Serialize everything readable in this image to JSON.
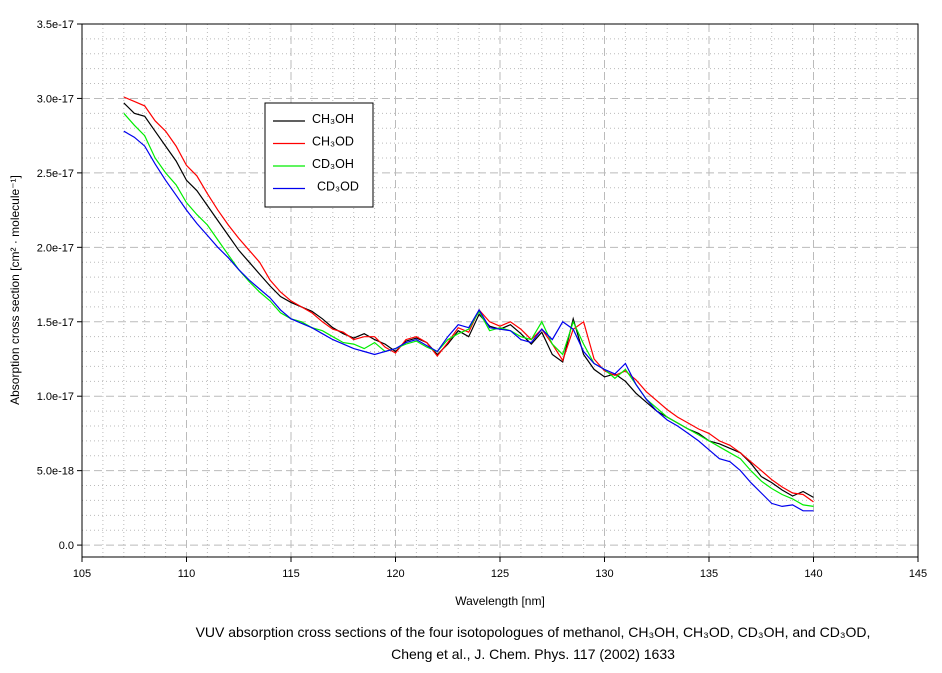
{
  "chart_data": {
    "type": "line",
    "title": "",
    "xlabel": "Wavelength [nm]",
    "ylabel": "Absorption cross section [cm² · molecule⁻¹]",
    "xlim": [
      105,
      145
    ],
    "ylim": [
      -8e-19,
      3.5e-17
    ],
    "xticks": [
      105,
      110,
      115,
      120,
      125,
      130,
      135,
      140,
      145
    ],
    "xtick_labels": [
      "105",
      "110",
      "115",
      "120",
      "125",
      "130",
      "135",
      "140",
      "145"
    ],
    "yticks": [
      0,
      5e-18,
      1e-17,
      1.5e-17,
      2e-17,
      2.5e-17,
      3e-17,
      3.5e-17
    ],
    "ytick_labels": [
      "0.0",
      "5.0e-18",
      "1.0e-17",
      "1.5e-17",
      "2.0e-17",
      "2.5e-17",
      "3.0e-17",
      "3.5e-17"
    ],
    "grid": {
      "major": "dashed",
      "minor": "dotted",
      "on": true
    },
    "legend_position": "upper-left",
    "x": [
      107,
      107.5,
      108,
      108.5,
      109,
      109.5,
      110,
      110.5,
      111,
      111.5,
      112,
      112.5,
      113,
      113.5,
      114,
      114.5,
      115,
      115.5,
      116,
      116.5,
      117,
      117.5,
      118,
      118.5,
      119,
      119.5,
      120,
      120.5,
      121,
      121.5,
      122,
      122.5,
      123,
      123.5,
      124,
      124.5,
      125,
      125.5,
      126,
      126.5,
      127,
      127.5,
      128,
      128.5,
      129,
      129.5,
      130,
      130.5,
      131,
      131.5,
      132,
      132.5,
      133,
      133.5,
      134,
      134.5,
      135,
      135.5,
      136,
      136.5,
      137,
      137.5,
      138,
      138.5,
      139,
      139.5,
      140
    ],
    "series": [
      {
        "name": "CH₃OH",
        "color": "#000000",
        "values": [
          2.97e-17,
          2.9e-17,
          2.88e-17,
          2.78e-17,
          2.68e-17,
          2.58e-17,
          2.45e-17,
          2.38e-17,
          2.28e-17,
          2.18e-17,
          2.08e-17,
          1.98e-17,
          1.9e-17,
          1.82e-17,
          1.74e-17,
          1.67e-17,
          1.63e-17,
          1.6e-17,
          1.57e-17,
          1.52e-17,
          1.46e-17,
          1.42e-17,
          1.39e-17,
          1.42e-17,
          1.38e-17,
          1.35e-17,
          1.3e-17,
          1.37e-17,
          1.39e-17,
          1.36e-17,
          1.28e-17,
          1.35e-17,
          1.44e-17,
          1.4e-17,
          1.55e-17,
          1.47e-17,
          1.45e-17,
          1.48e-17,
          1.42e-17,
          1.35e-17,
          1.43e-17,
          1.28e-17,
          1.23e-17,
          1.52e-17,
          1.28e-17,
          1.18e-17,
          1.13e-17,
          1.15e-17,
          1.1e-17,
          1.02e-17,
          9.6e-18,
          9e-18,
          8.6e-18,
          8.2e-18,
          7.8e-18,
          7.5e-18,
          7e-18,
          6.8e-18,
          6.5e-18,
          6.2e-18,
          5.5e-18,
          4.6e-18,
          4.2e-18,
          3.7e-18,
          3.3e-18,
          3.6e-18,
          3.2e-18
        ]
      },
      {
        "name": "CH₃OD",
        "color": "#ff0000",
        "values": [
          3.01e-17,
          2.98e-17,
          2.95e-17,
          2.85e-17,
          2.78e-17,
          2.68e-17,
          2.55e-17,
          2.48e-17,
          2.36e-17,
          2.25e-17,
          2.15e-17,
          2.06e-17,
          1.98e-17,
          1.9e-17,
          1.78e-17,
          1.7e-17,
          1.64e-17,
          1.6e-17,
          1.56e-17,
          1.5e-17,
          1.45e-17,
          1.43e-17,
          1.38e-17,
          1.4e-17,
          1.4e-17,
          1.33e-17,
          1.29e-17,
          1.38e-17,
          1.4e-17,
          1.36e-17,
          1.27e-17,
          1.36e-17,
          1.46e-17,
          1.43e-17,
          1.58e-17,
          1.5e-17,
          1.47e-17,
          1.5e-17,
          1.45e-17,
          1.38e-17,
          1.45e-17,
          1.35e-17,
          1.24e-17,
          1.45e-17,
          1.5e-17,
          1.25e-17,
          1.17e-17,
          1.14e-17,
          1.17e-17,
          1.11e-17,
          1.03e-17,
          9.7e-18,
          9.1e-18,
          8.6e-18,
          8.2e-18,
          7.8e-18,
          7.5e-18,
          7e-18,
          6.7e-18,
          6.2e-18,
          5.6e-18,
          5e-18,
          4.4e-18,
          3.9e-18,
          3.5e-18,
          3.4e-18,
          2.9e-18
        ]
      },
      {
        "name": "CD₃OH",
        "color": "#00ee00",
        "values": [
          2.9e-17,
          2.82e-17,
          2.75e-17,
          2.6e-17,
          2.5e-17,
          2.42e-17,
          2.3e-17,
          2.22e-17,
          2.15e-17,
          2.05e-17,
          1.95e-17,
          1.85e-17,
          1.77e-17,
          1.7e-17,
          1.64e-17,
          1.56e-17,
          1.52e-17,
          1.5e-17,
          1.46e-17,
          1.44e-17,
          1.4e-17,
          1.36e-17,
          1.35e-17,
          1.32e-17,
          1.36e-17,
          1.3e-17,
          1.32e-17,
          1.35e-17,
          1.37e-17,
          1.33e-17,
          1.3e-17,
          1.38e-17,
          1.42e-17,
          1.45e-17,
          1.57e-17,
          1.44e-17,
          1.46e-17,
          1.44e-17,
          1.4e-17,
          1.38e-17,
          1.5e-17,
          1.35e-17,
          1.28e-17,
          1.5e-17,
          1.35e-17,
          1.22e-17,
          1.18e-17,
          1.12e-17,
          1.18e-17,
          1.08e-17,
          9.8e-18,
          9.2e-18,
          8.6e-18,
          8.2e-18,
          7.8e-18,
          7.4e-18,
          7e-18,
          6.6e-18,
          6.2e-18,
          5.8e-18,
          5e-18,
          4.3e-18,
          3.8e-18,
          3.4e-18,
          3.1e-18,
          2.7e-18,
          2.6e-18
        ]
      },
      {
        "name": "CD₃OD",
        "color": "#0000ee",
        "values": [
          2.78e-17,
          2.74e-17,
          2.68e-17,
          2.56e-17,
          2.45e-17,
          2.35e-17,
          2.25e-17,
          2.16e-17,
          2.08e-17,
          2e-17,
          1.93e-17,
          1.85e-17,
          1.78e-17,
          1.72e-17,
          1.66e-17,
          1.58e-17,
          1.52e-17,
          1.49e-17,
          1.46e-17,
          1.42e-17,
          1.38e-17,
          1.35e-17,
          1.32e-17,
          1.3e-17,
          1.28e-17,
          1.3e-17,
          1.32e-17,
          1.36e-17,
          1.38e-17,
          1.34e-17,
          1.3e-17,
          1.4e-17,
          1.48e-17,
          1.46e-17,
          1.58e-17,
          1.46e-17,
          1.45e-17,
          1.44e-17,
          1.38e-17,
          1.36e-17,
          1.45e-17,
          1.38e-17,
          1.5e-17,
          1.45e-17,
          1.3e-17,
          1.22e-17,
          1.18e-17,
          1.15e-17,
          1.22e-17,
          1.08e-17,
          9.8e-18,
          9e-18,
          8.4e-18,
          8e-18,
          7.5e-18,
          7e-18,
          6.4e-18,
          5.8e-18,
          5.6e-18,
          5e-18,
          4.2e-18,
          3.5e-18,
          2.8e-18,
          2.6e-18,
          2.7e-18,
          2.3e-18,
          2.3e-18
        ]
      }
    ]
  },
  "caption": {
    "line1": "VUV absorption cross sections of the four isotopologues of methanol, CH₃OH, CH₃OD, CD₃OH, and CD₃OD,",
    "line2": "Cheng et al., J. Chem. Phys. 117 (2002) 1633"
  }
}
